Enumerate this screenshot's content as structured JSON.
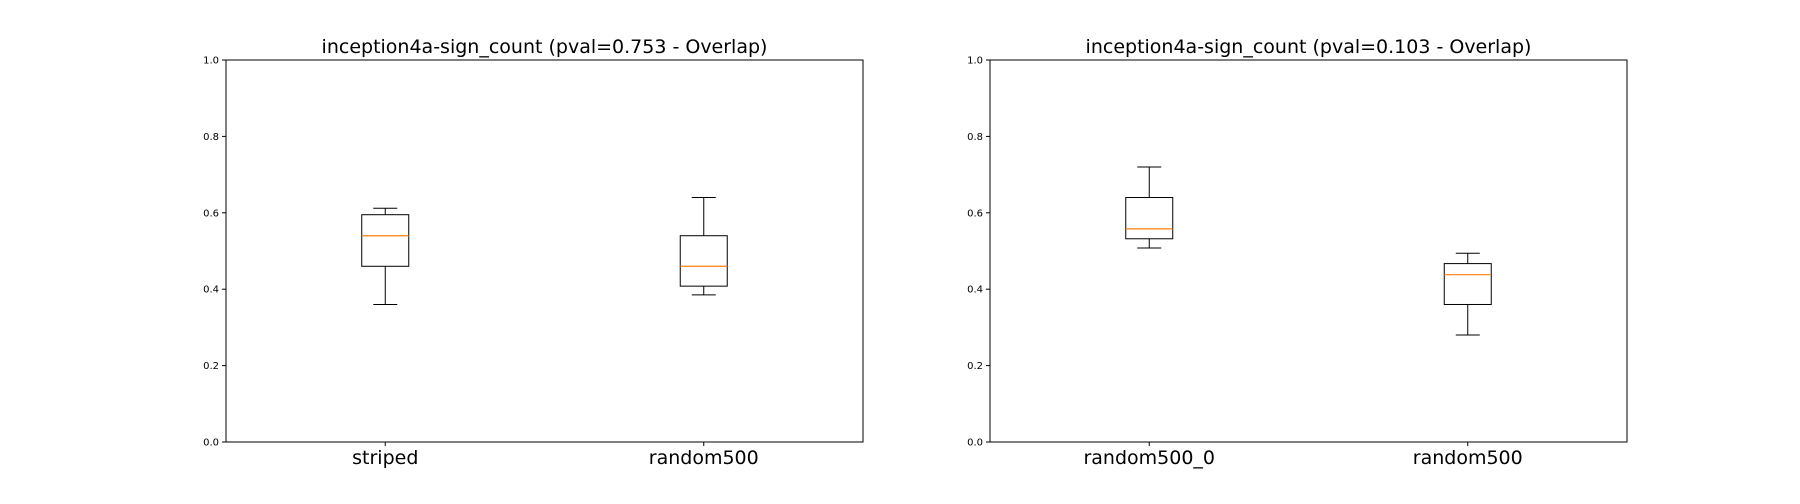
{
  "chart_data": [
    {
      "type": "box",
      "title": "inception4a-sign_count (pval=0.753 - Overlap)",
      "xlabel": "",
      "ylabel": "",
      "ylim": [
        0.0,
        1.0
      ],
      "yticks": [
        "0.0",
        "0.2",
        "0.4",
        "0.6",
        "0.8",
        "1.0"
      ],
      "categories": [
        "striped",
        "random500"
      ],
      "boxes": [
        {
          "whislo": 0.36,
          "q1": 0.46,
          "med": 0.54,
          "q3": 0.595,
          "whishi": 0.612
        },
        {
          "whislo": 0.385,
          "q1": 0.408,
          "med": 0.46,
          "q3": 0.54,
          "whishi": 0.64
        }
      ],
      "grid": false,
      "legend": "none"
    },
    {
      "type": "box",
      "title": "inception4a-sign_count (pval=0.103 - Overlap)",
      "xlabel": "",
      "ylabel": "",
      "ylim": [
        0.0,
        1.0
      ],
      "yticks": [
        "0.0",
        "0.2",
        "0.4",
        "0.6",
        "0.8",
        "1.0"
      ],
      "categories": [
        "random500_0",
        "random500"
      ],
      "boxes": [
        {
          "whislo": 0.508,
          "q1": 0.532,
          "med": 0.558,
          "q3": 0.64,
          "whishi": 0.72
        },
        {
          "whislo": 0.28,
          "q1": 0.36,
          "med": 0.438,
          "q3": 0.467,
          "whishi": 0.494
        }
      ],
      "grid": false,
      "legend": "none"
    }
  ],
  "colors": {
    "box": "#000000",
    "median": "#ff7f0e",
    "axes": "#000000"
  }
}
